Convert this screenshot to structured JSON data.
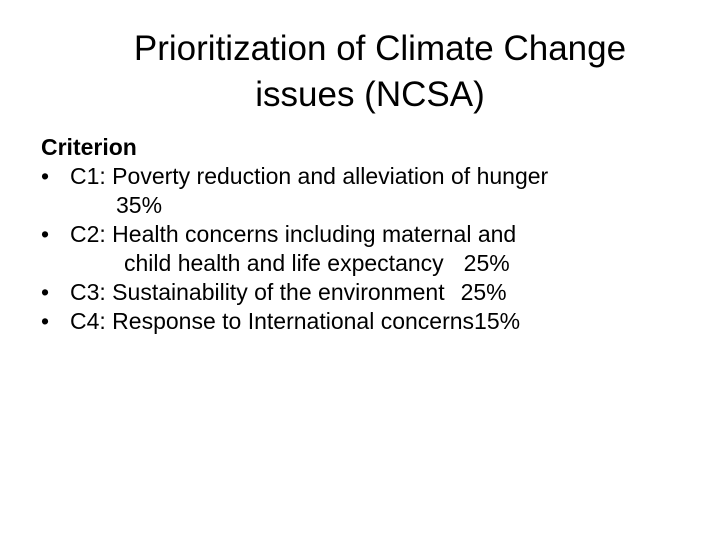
{
  "slide": {
    "title_line1": "Prioritization of Climate Change",
    "title_line2": "issues (NCSA)",
    "heading": "Criterion",
    "bullet_char": "•",
    "criteria": [
      {
        "text": "C1: Poverty reduction and alleviation of hunger",
        "weight": "35%"
      },
      {
        "text": "C2: Health concerns including maternal and",
        "text_cont": "child health and life expectancy",
        "weight": "25%"
      },
      {
        "text": "C3: Sustainability of the environment",
        "weight": "25%"
      },
      {
        "text": "C4: Response to International concerns",
        "weight": "15%"
      }
    ]
  }
}
